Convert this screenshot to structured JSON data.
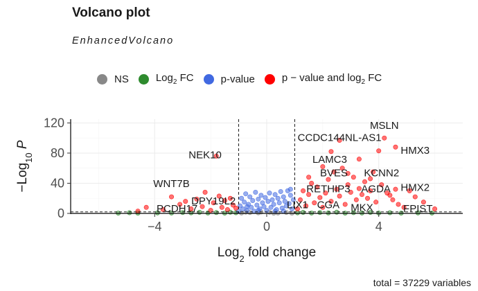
{
  "chart_data": {
    "type": "scatter",
    "title": "Volcano plot",
    "subtitle": "EnhancedVolcano",
    "xlabel": "Log2 fold change",
    "ylabel": "−Log10 P",
    "caption": "total = 37229 variables",
    "xlim": [
      -7,
      7
    ],
    "ylim": [
      0,
      125
    ],
    "xticks": [
      -4,
      0,
      4
    ],
    "yticks": [
      0,
      40,
      80,
      120
    ],
    "fc_cutoff": 1,
    "p_cutoff_log10": 2,
    "grid": true,
    "legend_position": "top",
    "legend": [
      {
        "label": "NS",
        "sub": "",
        "rest": "",
        "color": "#888888"
      },
      {
        "label": "Log",
        "sub": "2",
        "rest": " FC",
        "color": "#2e8b2e"
      },
      {
        "label": "p-value",
        "sub": "",
        "rest": "",
        "color": "#4169e1"
      },
      {
        "label": "p − value and log",
        "sub": "2",
        "rest": " FC",
        "color": "#ff0000"
      }
    ],
    "series": [
      {
        "name": "NS",
        "color": "#888888",
        "points": [
          [
            -0.9,
            0.5
          ],
          [
            -0.6,
            1.2
          ],
          [
            -0.3,
            0.8
          ],
          [
            0.1,
            1.6
          ],
          [
            0.4,
            0.6
          ],
          [
            0.7,
            1.3
          ],
          [
            0.9,
            0.3
          ],
          [
            -0.2,
            1.9
          ],
          [
            0.25,
            0.2
          ],
          [
            -0.75,
            1.7
          ]
        ]
      },
      {
        "name": "Log2 FC",
        "color": "#2e8b2e",
        "points": [
          [
            -5.3,
            0.4
          ],
          [
            -4.9,
            0.9
          ],
          [
            -4.6,
            0.3
          ],
          [
            -3.9,
            0.7
          ],
          [
            -3.4,
            0.5
          ],
          [
            -3.0,
            1.2
          ],
          [
            -2.7,
            0.8
          ],
          [
            -2.4,
            1.5
          ],
          [
            -2.1,
            0.6
          ],
          [
            -1.8,
            1.1
          ],
          [
            -1.5,
            0.4
          ],
          [
            -1.3,
            1.6
          ],
          [
            -1.1,
            0.9
          ],
          [
            1.1,
            0.8
          ],
          [
            1.3,
            1.4
          ],
          [
            1.6,
            0.5
          ],
          [
            1.9,
            1.2
          ],
          [
            2.2,
            0.7
          ],
          [
            2.5,
            1.6
          ],
          [
            2.8,
            0.4
          ],
          [
            3.1,
            1.0
          ],
          [
            3.4,
            0.6
          ],
          [
            3.7,
            1.3
          ],
          [
            4.0,
            0.5
          ],
          [
            4.4,
            0.9
          ],
          [
            4.8,
            0.4
          ],
          [
            5.4,
            0.7
          ],
          [
            5.9,
            0.5
          ]
        ]
      },
      {
        "name": "p-value",
        "color": "#4169e1",
        "points": [
          [
            -1.0,
            3
          ],
          [
            -0.95,
            10
          ],
          [
            -0.9,
            20
          ],
          [
            -0.85,
            6
          ],
          [
            -0.8,
            15
          ],
          [
            -0.75,
            26
          ],
          [
            -0.7,
            4
          ],
          [
            -0.65,
            12
          ],
          [
            -0.6,
            22
          ],
          [
            -0.55,
            8
          ],
          [
            -0.5,
            17
          ],
          [
            -0.45,
            3
          ],
          [
            -0.4,
            28
          ],
          [
            -0.35,
            11
          ],
          [
            -0.3,
            19
          ],
          [
            -0.25,
            6
          ],
          [
            -0.2,
            24
          ],
          [
            -0.15,
            14
          ],
          [
            -0.1,
            9
          ],
          [
            -0.05,
            21
          ],
          [
            0.0,
            4
          ],
          [
            0.05,
            16
          ],
          [
            0.1,
            27
          ],
          [
            0.15,
            8
          ],
          [
            0.2,
            18
          ],
          [
            0.25,
            12
          ],
          [
            0.3,
            25
          ],
          [
            0.35,
            5
          ],
          [
            0.4,
            20
          ],
          [
            0.45,
            14
          ],
          [
            0.5,
            29
          ],
          [
            0.55,
            7
          ],
          [
            0.6,
            22
          ],
          [
            0.65,
            16
          ],
          [
            0.7,
            10
          ],
          [
            0.75,
            30
          ],
          [
            0.8,
            13
          ],
          [
            0.85,
            24
          ],
          [
            0.9,
            6
          ],
          [
            0.95,
            18
          ],
          [
            -0.7,
            9
          ],
          [
            0.3,
            3
          ],
          [
            0.6,
            3
          ],
          [
            -0.3,
            4
          ],
          [
            0.85,
            32
          ]
        ]
      },
      {
        "name": "p − value and log2 FC",
        "color": "#ff0000",
        "points": [
          [
            -4.6,
            3
          ],
          [
            -4.3,
            8
          ],
          [
            -3.7,
            5
          ],
          [
            -3.4,
            22
          ],
          [
            -3.1,
            12
          ],
          [
            -2.9,
            16
          ],
          [
            -2.7,
            6
          ],
          [
            -2.5,
            19
          ],
          [
            -2.3,
            9
          ],
          [
            -2.2,
            28
          ],
          [
            -2.0,
            4
          ],
          [
            -1.9,
            14
          ],
          [
            -1.8,
            76
          ],
          [
            -1.7,
            23
          ],
          [
            -1.6,
            8
          ],
          [
            -1.5,
            17
          ],
          [
            -1.4,
            5
          ],
          [
            -1.3,
            20
          ],
          [
            -1.2,
            11
          ],
          [
            -1.1,
            7
          ],
          [
            1.1,
            6
          ],
          [
            1.2,
            18
          ],
          [
            1.3,
            30
          ],
          [
            1.4,
            10
          ],
          [
            1.5,
            25
          ],
          [
            1.6,
            40
          ],
          [
            1.7,
            14
          ],
          [
            1.8,
            35
          ],
          [
            1.9,
            21
          ],
          [
            2.0,
            8
          ],
          [
            2.1,
            27
          ],
          [
            2.2,
            45
          ],
          [
            2.3,
            16
          ],
          [
            2.4,
            55
          ],
          [
            2.5,
            32
          ],
          [
            2.6,
            23
          ],
          [
            2.7,
            60
          ],
          [
            2.8,
            12
          ],
          [
            2.9,
            38
          ],
          [
            3.0,
            28
          ],
          [
            3.1,
            48
          ],
          [
            3.2,
            18
          ],
          [
            3.3,
            33
          ],
          [
            3.4,
            25
          ],
          [
            3.5,
            42
          ],
          [
            3.6,
            20
          ],
          [
            3.7,
            30
          ],
          [
            3.8,
            55
          ],
          [
            3.9,
            15
          ],
          [
            4.0,
            83
          ],
          [
            4.1,
            38
          ],
          [
            4.2,
            100
          ],
          [
            4.3,
            27
          ],
          [
            4.4,
            24
          ],
          [
            4.5,
            18
          ],
          [
            4.6,
            32
          ],
          [
            4.7,
            12
          ],
          [
            4.9,
            8
          ],
          [
            5.1,
            30
          ],
          [
            5.3,
            22
          ],
          [
            5.6,
            15
          ],
          [
            6.0,
            6
          ],
          [
            2.6,
            97
          ],
          [
            2.3,
            82
          ],
          [
            2.9,
            53
          ],
          [
            3.7,
            46
          ],
          [
            1.5,
            48
          ],
          [
            3.3,
            72
          ],
          [
            2.0,
            62
          ],
          [
            4.6,
            88
          ]
        ]
      }
    ],
    "labels": [
      {
        "text": "MSLN",
        "x": 4.2,
        "y": 112
      },
      {
        "text": "CCDC144NL-AS1",
        "x": 2.6,
        "y": 96
      },
      {
        "text": "HMX3",
        "x": 5.3,
        "y": 79
      },
      {
        "text": "NEK10",
        "x": -2.2,
        "y": 73
      },
      {
        "text": "LAMC3",
        "x": 2.25,
        "y": 67
      },
      {
        "text": "BVES",
        "x": 2.4,
        "y": 49
      },
      {
        "text": "KCNN2",
        "x": 4.1,
        "y": 49
      },
      {
        "text": "WNT7B",
        "x": -3.4,
        "y": 35
      },
      {
        "text": "RETHIP3",
        "x": 2.2,
        "y": 28
      },
      {
        "text": "AGDA",
        "x": 3.9,
        "y": 28
      },
      {
        "text": "HMX2",
        "x": 5.3,
        "y": 30
      },
      {
        "text": "DPY19L2",
        "x": -1.9,
        "y": 12
      },
      {
        "text": "LIX1",
        "x": 1.1,
        "y": 7
      },
      {
        "text": "CGA",
        "x": 2.2,
        "y": 7
      },
      {
        "text": "MKX",
        "x": 3.4,
        "y": 3
      },
      {
        "text": "FPIST",
        "x": 5.4,
        "y": 2
      },
      {
        "text": "PCDH17",
        "x": -3.2,
        "y": 2
      }
    ]
  }
}
